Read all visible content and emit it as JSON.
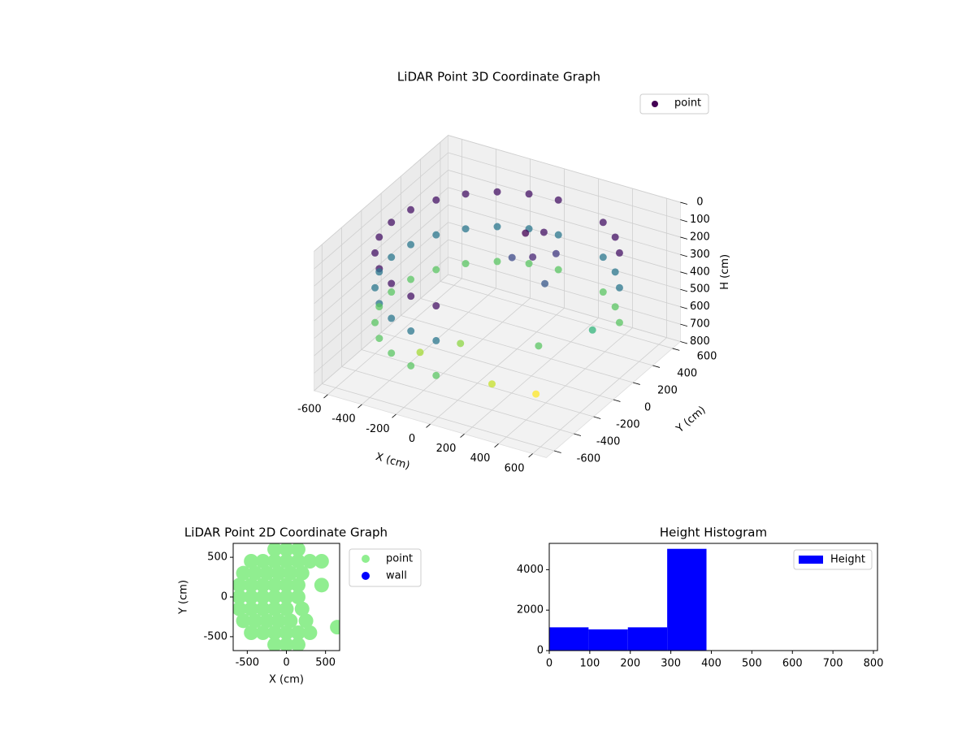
{
  "chart_data": [
    {
      "type": "scatter3d",
      "title": "LiDAR Point 3D Coordinate Graph",
      "xlabel": "X (cm)",
      "ylabel": "Y (cm)",
      "zlabel": "H (cm)",
      "xlim": [
        -680,
        680
      ],
      "ylim": [
        -680,
        680
      ],
      "zlim": [
        800,
        0
      ],
      "xticks": [
        -600,
        -400,
        -200,
        0,
        200,
        400,
        600
      ],
      "yticks": [
        -600,
        -400,
        -200,
        0,
        200,
        400,
        600
      ],
      "zticks": [
        0,
        100,
        200,
        300,
        400,
        500,
        600,
        700,
        800
      ],
      "colormap": "viridis",
      "grid": true,
      "legend": "upper right",
      "series": [
        {
          "name": "point",
          "color": "#440154",
          "x": [
            0,
            -160,
            -310,
            -438,
            -537,
            -599,
            -620,
            -599,
            -537,
            -438,
            -310,
            -160,
            0,
            310,
            438,
            537,
            0,
            -160,
            -310,
            -438,
            -537,
            -599,
            -620,
            -599,
            -537,
            -438,
            -310,
            -160,
            0,
            310,
            438,
            537,
            0,
            -160,
            -310,
            -438,
            -537,
            -599,
            -620,
            -599,
            -537,
            -438,
            -310,
            -160,
            0,
            310,
            438,
            537,
            50,
            150,
            100,
            200,
            0,
            250,
            300,
            400,
            -100,
            200,
            500,
            -250
          ],
          "y": [
            620,
            599,
            537,
            438,
            310,
            160,
            0,
            -160,
            -310,
            -438,
            -537,
            -599,
            -620,
            537,
            438,
            310,
            620,
            599,
            537,
            438,
            310,
            160,
            0,
            -160,
            -310,
            -438,
            -537,
            -599,
            -620,
            537,
            438,
            310,
            620,
            599,
            537,
            438,
            310,
            160,
            0,
            -160,
            -310,
            -438,
            -537,
            -599,
            -620,
            537,
            438,
            310,
            200,
            100,
            300,
            250,
            150,
            50,
            -100,
            -300,
            -200,
            -400,
            100,
            -350
          ],
          "z": [
            150,
            150,
            150,
            150,
            150,
            150,
            150,
            150,
            150,
            150,
            150,
            150,
            150,
            150,
            150,
            150,
            350,
            350,
            350,
            350,
            350,
            350,
            350,
            350,
            350,
            350,
            350,
            350,
            350,
            350,
            350,
            350,
            550,
            550,
            550,
            550,
            550,
            550,
            550,
            550,
            550,
            550,
            550,
            550,
            550,
            550,
            550,
            550,
            120,
            180,
            150,
            220,
            250,
            280,
            550,
            700,
            600,
            650,
            500,
            620
          ]
        }
      ]
    },
    {
      "type": "scatter",
      "title": "LiDAR Point 2D Coordinate Graph",
      "xlabel": "X (cm)",
      "ylabel": "Y (cm)",
      "xlim": [
        -680,
        680
      ],
      "ylim": [
        -675,
        675
      ],
      "xticks": [
        -500,
        0,
        500
      ],
      "yticks": [
        -500,
        0,
        500
      ],
      "legend": "outside right",
      "series": [
        {
          "name": "point",
          "color": "#90ee90",
          "x": [
            -150,
            0,
            150,
            -450,
            -300,
            -150,
            0,
            150,
            300,
            450,
            -550,
            -400,
            -250,
            -100,
            50,
            200,
            -600,
            -450,
            -300,
            -150,
            0,
            150,
            450,
            -600,
            -450,
            -300,
            -150,
            0,
            150,
            -600,
            -450,
            -300,
            -150,
            0,
            200,
            -550,
            -400,
            -250,
            -100,
            50,
            250,
            -450,
            -300,
            -150,
            0,
            150,
            300,
            -150,
            0,
            150,
            650
          ],
          "y": [
            600,
            600,
            600,
            450,
            450,
            450,
            450,
            450,
            450,
            450,
            300,
            300,
            300,
            300,
            300,
            300,
            150,
            150,
            150,
            150,
            150,
            150,
            150,
            0,
            0,
            0,
            0,
            0,
            0,
            -150,
            -150,
            -150,
            -150,
            -150,
            -150,
            -300,
            -300,
            -300,
            -300,
            -300,
            -300,
            -450,
            -450,
            -450,
            -450,
            -450,
            -450,
            -600,
            -600,
            -600,
            -380
          ]
        },
        {
          "name": "wall",
          "color": "#0000ff",
          "x": [],
          "y": []
        }
      ]
    },
    {
      "type": "histogram",
      "title": "Height Histogram",
      "bins": [
        0,
        97,
        194,
        291,
        388,
        485,
        582,
        679,
        776
      ],
      "series": [
        {
          "name": "Height",
          "color": "#0000ff",
          "values": [
            1150,
            1050,
            1150,
            5030,
            0,
            0,
            0,
            5
          ]
        }
      ],
      "xlim": [
        0,
        810
      ],
      "ylim": [
        0,
        5300
      ],
      "xticks": [
        0,
        100,
        200,
        300,
        400,
        500,
        600,
        700,
        800
      ],
      "yticks": [
        0,
        2000,
        4000
      ],
      "legend": "upper right"
    }
  ]
}
